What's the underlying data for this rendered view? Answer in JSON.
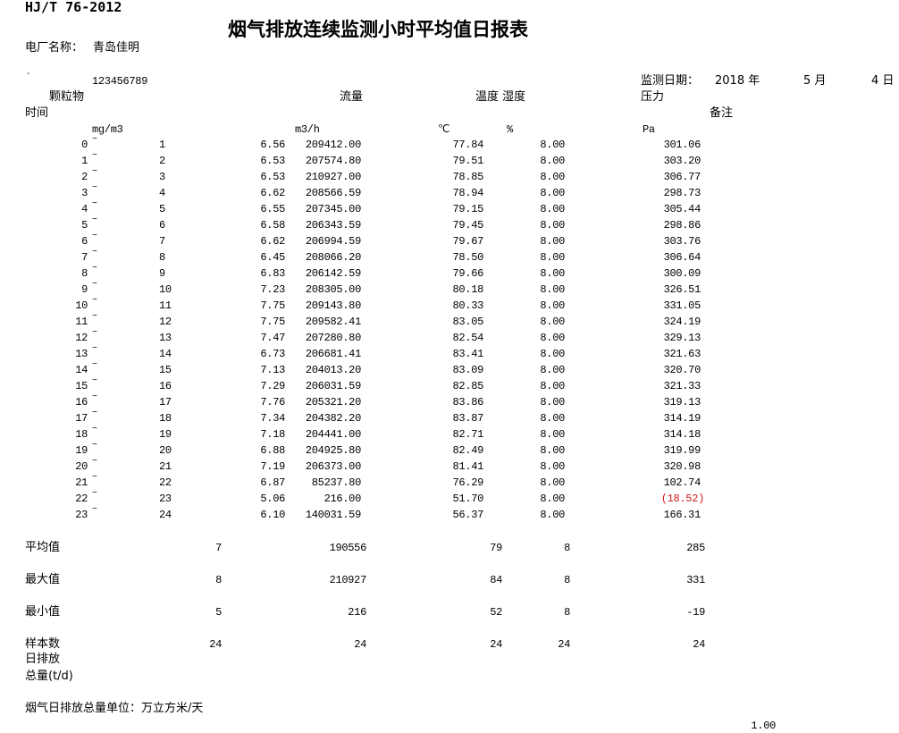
{
  "header": {
    "standard": "HJ/T 76-2012",
    "title": "烟气排放连续监测小时平均值日报表",
    "plant_label": "电厂名称：",
    "plant_name": "青岛佳明",
    "backtick": "`",
    "code": "123456789",
    "date_label": "监测日期：",
    "year": "2018 年",
    "month": "5 月",
    "day": "4 日"
  },
  "columns": {
    "time": "时间",
    "particulate": "颗粒物",
    "particulate_unit": "mg/m3",
    "flow": "流量",
    "flow_unit": "m3/h",
    "temp_humidity": "温度 湿度",
    "temp_unit": "℃",
    "humidity_unit": "%",
    "pressure": "压力",
    "pressure_unit": "Pa",
    "remark": "备注"
  },
  "tilde": "~",
  "rows": [
    {
      "from": "0",
      "to": "1",
      "pm": "6.56",
      "flow": "209412.00",
      "temp": "77.84",
      "hum": "8.00",
      "pa": "301.06"
    },
    {
      "from": "1",
      "to": "2",
      "pm": "6.53",
      "flow": "207574.80",
      "temp": "79.51",
      "hum": "8.00",
      "pa": "303.20"
    },
    {
      "from": "2",
      "to": "3",
      "pm": "6.53",
      "flow": "210927.00",
      "temp": "78.85",
      "hum": "8.00",
      "pa": "306.77"
    },
    {
      "from": "3",
      "to": "4",
      "pm": "6.62",
      "flow": "208566.59",
      "temp": "78.94",
      "hum": "8.00",
      "pa": "298.73"
    },
    {
      "from": "4",
      "to": "5",
      "pm": "6.55",
      "flow": "207345.00",
      "temp": "79.15",
      "hum": "8.00",
      "pa": "305.44"
    },
    {
      "from": "5",
      "to": "6",
      "pm": "6.58",
      "flow": "206343.59",
      "temp": "79.45",
      "hum": "8.00",
      "pa": "298.86"
    },
    {
      "from": "6",
      "to": "7",
      "pm": "6.62",
      "flow": "206994.59",
      "temp": "79.67",
      "hum": "8.00",
      "pa": "303.76"
    },
    {
      "from": "7",
      "to": "8",
      "pm": "6.45",
      "flow": "208066.20",
      "temp": "78.50",
      "hum": "8.00",
      "pa": "306.64"
    },
    {
      "from": "8",
      "to": "9",
      "pm": "6.83",
      "flow": "206142.59",
      "temp": "79.66",
      "hum": "8.00",
      "pa": "300.09"
    },
    {
      "from": "9",
      "to": "10",
      "pm": "7.23",
      "flow": "208305.00",
      "temp": "80.18",
      "hum": "8.00",
      "pa": "326.51"
    },
    {
      "from": "10",
      "to": "11",
      "pm": "7.75",
      "flow": "209143.80",
      "temp": "80.33",
      "hum": "8.00",
      "pa": "331.05"
    },
    {
      "from": "11",
      "to": "12",
      "pm": "7.75",
      "flow": "209582.41",
      "temp": "83.05",
      "hum": "8.00",
      "pa": "324.19"
    },
    {
      "from": "12",
      "to": "13",
      "pm": "7.47",
      "flow": "207280.80",
      "temp": "82.54",
      "hum": "8.00",
      "pa": "329.13"
    },
    {
      "from": "13",
      "to": "14",
      "pm": "6.73",
      "flow": "206681.41",
      "temp": "83.41",
      "hum": "8.00",
      "pa": "321.63"
    },
    {
      "from": "14",
      "to": "15",
      "pm": "7.13",
      "flow": "204013.20",
      "temp": "83.09",
      "hum": "8.00",
      "pa": "320.70"
    },
    {
      "from": "15",
      "to": "16",
      "pm": "7.29",
      "flow": "206031.59",
      "temp": "82.85",
      "hum": "8.00",
      "pa": "321.33"
    },
    {
      "from": "16",
      "to": "17",
      "pm": "7.76",
      "flow": "205321.20",
      "temp": "83.86",
      "hum": "8.00",
      "pa": "319.13"
    },
    {
      "from": "17",
      "to": "18",
      "pm": "7.34",
      "flow": "204382.20",
      "temp": "83.87",
      "hum": "8.00",
      "pa": "314.19"
    },
    {
      "from": "18",
      "to": "19",
      "pm": "7.18",
      "flow": "204441.00",
      "temp": "82.71",
      "hum": "8.00",
      "pa": "314.18"
    },
    {
      "from": "19",
      "to": "20",
      "pm": "6.88",
      "flow": "204925.80",
      "temp": "82.49",
      "hum": "8.00",
      "pa": "319.99"
    },
    {
      "from": "20",
      "to": "21",
      "pm": "7.19",
      "flow": "206373.00",
      "temp": "81.41",
      "hum": "8.00",
      "pa": "320.98"
    },
    {
      "from": "21",
      "to": "22",
      "pm": "6.87",
      "flow": "85237.80",
      "temp": "76.29",
      "hum": "8.00",
      "pa": "102.74"
    },
    {
      "from": "22",
      "to": "23",
      "pm": "5.06",
      "flow": "216.00",
      "temp": "51.70",
      "hum": "8.00",
      "pa": "(18.52)",
      "negative": true
    },
    {
      "from": "23",
      "to": "24",
      "pm": "6.10",
      "flow": "140031.59",
      "temp": "56.37",
      "hum": "8.00",
      "pa": "166.31"
    }
  ],
  "summary": [
    {
      "label": "平均值",
      "pm": "7",
      "flow": "190556",
      "temp": "79",
      "hum": "8",
      "pa": "285"
    },
    {
      "label": "最大值",
      "pm": "8",
      "flow": "210927",
      "temp": "84",
      "hum": "8",
      "pa": "331"
    },
    {
      "label": "最小值",
      "pm": "5",
      "flow": "216",
      "temp": "52",
      "hum": "8",
      "pa": "-19"
    },
    {
      "label": "样本数",
      "pm": "24",
      "flow": "24",
      "temp": "24",
      "hum": "24",
      "pa": "24"
    }
  ],
  "footer": {
    "daily_emission_line1": "日排放",
    "daily_emission_line2": "总量(t/d)",
    "unit_note": "烟气日排放总量单位：万立方米/天",
    "value": "1.00"
  },
  "colors": {
    "negative": "#d01818"
  }
}
